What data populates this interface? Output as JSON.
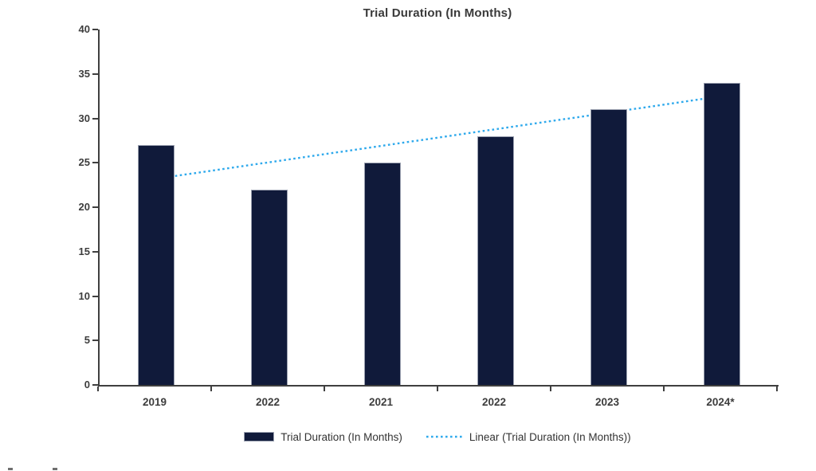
{
  "chart_data": {
    "type": "bar",
    "title": "Trial Duration (In Months)",
    "categories": [
      "2019",
      "2022",
      "2021",
      "2022",
      "2023",
      "2024*"
    ],
    "series": [
      {
        "name": "Trial Duration (In Months)",
        "values": [
          27,
          22,
          25,
          28,
          31,
          34
        ]
      }
    ],
    "trendline": {
      "name": "Linear (Trial Duration (In Months))",
      "style": "dotted",
      "start_value": 23.2,
      "end_value": 32.5
    },
    "xlabel": "",
    "ylabel": "",
    "ylim": [
      0,
      40
    ],
    "ytick_step": 5,
    "yticks": [
      0,
      5,
      10,
      15,
      20,
      25,
      30,
      35,
      40
    ],
    "grid": false,
    "legend_position": "bottom",
    "colors": {
      "bar": "#101a3a",
      "trend": "#2ea9ec",
      "axis": "#3f3f3f",
      "text": "#3d3d3d"
    }
  }
}
